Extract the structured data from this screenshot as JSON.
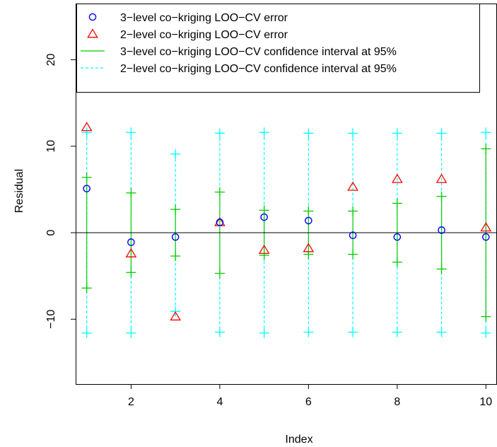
{
  "chart_data": {
    "type": "scatter",
    "xlabel": "Index",
    "ylabel": "Residual",
    "xlim": [
      0.75,
      10.25
    ],
    "ylim": [
      -17.5,
      26.5
    ],
    "x_ticks": [
      2,
      4,
      6,
      8,
      10
    ],
    "y_ticks": [
      -10,
      0,
      10,
      20
    ],
    "x_tick_labels": [
      "2",
      "4",
      "6",
      "8",
      "10"
    ],
    "y_tick_labels": [
      "−10",
      "0",
      "10",
      "20"
    ],
    "zero_line": 0,
    "legend_position": "top-right",
    "x": [
      1,
      2,
      3,
      4,
      5,
      6,
      7,
      8,
      9,
      10
    ],
    "series": [
      {
        "name": "3−level co−kriging LOO−CV error",
        "kind": "points",
        "marker": "circle",
        "color": "#0000ff",
        "values": [
          5.1,
          -1.1,
          -0.5,
          1.2,
          1.8,
          1.4,
          -0.3,
          -0.5,
          0.3,
          -0.5
        ]
      },
      {
        "name": "2−level co−kriging LOO−CV error",
        "kind": "points",
        "marker": "triangle",
        "color": "#ff0000",
        "values": [
          12.2,
          -2.4,
          -9.7,
          1.2,
          -2.0,
          -1.8,
          5.3,
          6.2,
          6.2,
          0.6
        ]
      },
      {
        "name": "3−level co−kriging LOO−CV confidence interval at 95%",
        "kind": "interval",
        "line_style": "solid",
        "color": "#00cd00",
        "upper": [
          6.4,
          4.6,
          2.7,
          4.7,
          2.6,
          2.5,
          2.5,
          3.4,
          4.2,
          9.7
        ],
        "lower": [
          -6.4,
          -4.6,
          -2.7,
          -4.7,
          -2.6,
          -2.5,
          -2.5,
          -3.4,
          -4.2,
          -9.7
        ]
      },
      {
        "name": "2−level co−kriging LOO−CV confidence interval at 95%",
        "kind": "interval",
        "line_style": "dashed",
        "color": "#00ffff",
        "upper": [
          11.6,
          11.6,
          9.1,
          11.5,
          11.6,
          11.5,
          11.5,
          11.5,
          11.5,
          11.6
        ],
        "lower": [
          -11.6,
          -11.6,
          -9.1,
          -11.5,
          -11.6,
          -11.5,
          -11.5,
          -11.5,
          -11.5,
          -11.6
        ]
      }
    ]
  }
}
